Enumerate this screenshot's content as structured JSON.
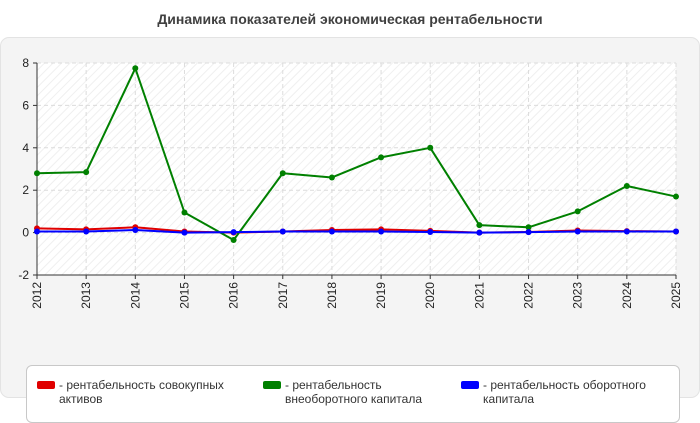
{
  "title": "Динамика показателей экономическая рентабельности",
  "chart_data": {
    "type": "line",
    "title": "Динамика показателей экономическая рентабельности",
    "x": [
      "2012",
      "2013",
      "2014",
      "2015",
      "2016",
      "2017",
      "2018",
      "2019",
      "2020",
      "2021",
      "2022",
      "2023",
      "2024",
      "2025"
    ],
    "ylim": [
      -2,
      8
    ],
    "yticks": [
      -2,
      0,
      2,
      4,
      6,
      8
    ],
    "grid": true,
    "legend_position": "bottom",
    "series": [
      {
        "name": "- рентабельность совокупных активов",
        "color": "#e00000",
        "values": [
          0.2,
          0.15,
          0.25,
          0.05,
          0.0,
          0.05,
          0.12,
          0.15,
          0.08,
          0.0,
          0.03,
          0.1,
          0.07,
          0.05
        ]
      },
      {
        "name": "- рентабельность внеоборотного капитала",
        "color": "#008000",
        "values": [
          2.8,
          2.85,
          7.75,
          0.95,
          -0.35,
          2.8,
          2.6,
          3.55,
          4.0,
          0.35,
          0.25,
          1.0,
          2.2,
          1.7
        ]
      },
      {
        "name": "- рентабельность оборотного капитала",
        "color": "#0000ff",
        "values": [
          0.05,
          0.05,
          0.12,
          0.0,
          0.02,
          0.05,
          0.05,
          0.05,
          0.03,
          0.0,
          0.02,
          0.05,
          0.05,
          0.05
        ]
      }
    ]
  }
}
